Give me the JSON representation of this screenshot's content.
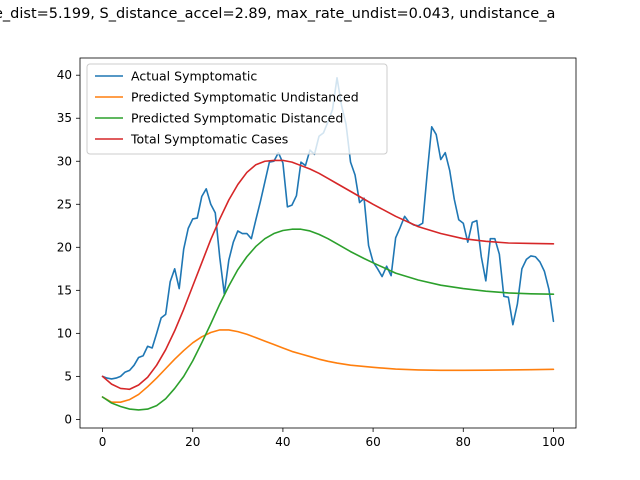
{
  "chart_data": {
    "type": "line",
    "title": "e_dist=5.199, S_distance_accel=2.89, max_rate_undist=0.043, undistance_a",
    "xlabel": "",
    "ylabel": "",
    "xlim": [
      -5,
      105
    ],
    "ylim": [
      -1,
      42
    ],
    "xticks": [
      0,
      20,
      40,
      60,
      80,
      100
    ],
    "yticks": [
      0,
      5,
      10,
      15,
      20,
      25,
      30,
      35,
      40
    ],
    "grid": false,
    "legend_position": "top-left",
    "series": [
      {
        "name": "Actual Symptomatic",
        "color": "#1f77b4",
        "points": [
          [
            0,
            5.0
          ],
          [
            1,
            4.8
          ],
          [
            2,
            4.7
          ],
          [
            3,
            4.8
          ],
          [
            4,
            5.0
          ],
          [
            5,
            5.5
          ],
          [
            6,
            5.7
          ],
          [
            7,
            6.3
          ],
          [
            8,
            7.2
          ],
          [
            9,
            7.4
          ],
          [
            10,
            8.5
          ],
          [
            11,
            8.3
          ],
          [
            12,
            10.0
          ],
          [
            13,
            11.8
          ],
          [
            14,
            12.2
          ],
          [
            15,
            16.0
          ],
          [
            16,
            17.5
          ],
          [
            17,
            15.2
          ],
          [
            18,
            19.8
          ],
          [
            19,
            22.2
          ],
          [
            20,
            23.3
          ],
          [
            21,
            23.4
          ],
          [
            22,
            25.9
          ],
          [
            23,
            26.8
          ],
          [
            24,
            25.0
          ],
          [
            25,
            24.0
          ],
          [
            26,
            18.8
          ],
          [
            27,
            14.6
          ],
          [
            28,
            18.5
          ],
          [
            29,
            20.6
          ],
          [
            30,
            21.9
          ],
          [
            31,
            21.6
          ],
          [
            32,
            21.6
          ],
          [
            33,
            21.0
          ],
          [
            34,
            23.2
          ],
          [
            35,
            25.3
          ],
          [
            36,
            27.6
          ],
          [
            37,
            29.9
          ],
          [
            38,
            30.0
          ],
          [
            39,
            31.0
          ],
          [
            40,
            29.8
          ],
          [
            41,
            24.7
          ],
          [
            42,
            24.9
          ],
          [
            43,
            26.0
          ],
          [
            44,
            29.9
          ],
          [
            45,
            29.5
          ],
          [
            46,
            31.3
          ],
          [
            47,
            30.8
          ],
          [
            48,
            32.9
          ],
          [
            49,
            33.3
          ],
          [
            50,
            34.6
          ],
          [
            51,
            36.0
          ],
          [
            52,
            39.7
          ],
          [
            53,
            36.5
          ],
          [
            54,
            34.3
          ],
          [
            55,
            29.9
          ],
          [
            56,
            28.4
          ],
          [
            57,
            25.2
          ],
          [
            58,
            25.7
          ],
          [
            59,
            20.2
          ],
          [
            60,
            18.3
          ],
          [
            61,
            17.5
          ],
          [
            62,
            16.6
          ],
          [
            63,
            17.8
          ],
          [
            64,
            16.7
          ],
          [
            65,
            21.1
          ],
          [
            66,
            22.3
          ],
          [
            67,
            23.6
          ],
          [
            68,
            22.9
          ],
          [
            69,
            22.6
          ],
          [
            70,
            22.5
          ],
          [
            71,
            22.8
          ],
          [
            72,
            28.6
          ],
          [
            73,
            34.0
          ],
          [
            74,
            33.1
          ],
          [
            75,
            30.2
          ],
          [
            76,
            31.0
          ],
          [
            77,
            28.9
          ],
          [
            78,
            25.6
          ],
          [
            79,
            23.2
          ],
          [
            80,
            22.8
          ],
          [
            81,
            20.6
          ],
          [
            82,
            22.9
          ],
          [
            83,
            23.1
          ],
          [
            84,
            18.9
          ],
          [
            85,
            16.1
          ],
          [
            86,
            21.0
          ],
          [
            87,
            21.0
          ],
          [
            88,
            19.2
          ],
          [
            89,
            14.3
          ],
          [
            90,
            14.2
          ],
          [
            91,
            11.0
          ],
          [
            92,
            13.4
          ],
          [
            93,
            17.5
          ],
          [
            94,
            18.6
          ],
          [
            95,
            19.0
          ],
          [
            96,
            18.9
          ],
          [
            97,
            18.3
          ],
          [
            98,
            17.2
          ],
          [
            99,
            15.1
          ],
          [
            100,
            11.4
          ]
        ]
      },
      {
        "name": "Predicted Symptomatic Undistanced",
        "color": "#ff7f0e",
        "points": [
          [
            0,
            2.6
          ],
          [
            2,
            2.0
          ],
          [
            4,
            2.0
          ],
          [
            6,
            2.3
          ],
          [
            8,
            2.9
          ],
          [
            10,
            3.8
          ],
          [
            12,
            4.8
          ],
          [
            14,
            5.9
          ],
          [
            16,
            7.0
          ],
          [
            18,
            8.0
          ],
          [
            20,
            8.9
          ],
          [
            22,
            9.6
          ],
          [
            24,
            10.1
          ],
          [
            26,
            10.4
          ],
          [
            28,
            10.4
          ],
          [
            30,
            10.2
          ],
          [
            32,
            9.9
          ],
          [
            34,
            9.5
          ],
          [
            36,
            9.1
          ],
          [
            38,
            8.7
          ],
          [
            40,
            8.3
          ],
          [
            42,
            7.9
          ],
          [
            44,
            7.6
          ],
          [
            46,
            7.3
          ],
          [
            48,
            7.0
          ],
          [
            50,
            6.75
          ],
          [
            52,
            6.55
          ],
          [
            55,
            6.3
          ],
          [
            60,
            6.05
          ],
          [
            65,
            5.85
          ],
          [
            70,
            5.75
          ],
          [
            75,
            5.7
          ],
          [
            80,
            5.7
          ],
          [
            85,
            5.72
          ],
          [
            90,
            5.75
          ],
          [
            95,
            5.78
          ],
          [
            100,
            5.82
          ]
        ]
      },
      {
        "name": "Predicted Symptomatic Distanced",
        "color": "#2ca02c",
        "points": [
          [
            0,
            2.6
          ],
          [
            2,
            1.9
          ],
          [
            4,
            1.5
          ],
          [
            6,
            1.2
          ],
          [
            8,
            1.1
          ],
          [
            10,
            1.2
          ],
          [
            12,
            1.6
          ],
          [
            14,
            2.4
          ],
          [
            16,
            3.6
          ],
          [
            18,
            5.0
          ],
          [
            20,
            6.8
          ],
          [
            22,
            8.9
          ],
          [
            24,
            11.1
          ],
          [
            26,
            13.4
          ],
          [
            28,
            15.5
          ],
          [
            30,
            17.4
          ],
          [
            32,
            18.9
          ],
          [
            34,
            20.1
          ],
          [
            36,
            21.0
          ],
          [
            38,
            21.6
          ],
          [
            40,
            21.95
          ],
          [
            42,
            22.1
          ],
          [
            44,
            22.1
          ],
          [
            46,
            21.9
          ],
          [
            48,
            21.5
          ],
          [
            50,
            21.0
          ],
          [
            52,
            20.4
          ],
          [
            55,
            19.5
          ],
          [
            58,
            18.7
          ],
          [
            60,
            18.2
          ],
          [
            65,
            17.0
          ],
          [
            70,
            16.2
          ],
          [
            75,
            15.6
          ],
          [
            80,
            15.2
          ],
          [
            85,
            14.9
          ],
          [
            90,
            14.7
          ],
          [
            95,
            14.6
          ],
          [
            100,
            14.55
          ]
        ]
      },
      {
        "name": "Total Symptomatic Cases",
        "color": "#d62728",
        "points": [
          [
            0,
            5.0
          ],
          [
            2,
            4.1
          ],
          [
            4,
            3.6
          ],
          [
            6,
            3.5
          ],
          [
            8,
            4.0
          ],
          [
            10,
            4.9
          ],
          [
            12,
            6.3
          ],
          [
            14,
            8.1
          ],
          [
            16,
            10.3
          ],
          [
            18,
            12.8
          ],
          [
            20,
            15.5
          ],
          [
            22,
            18.2
          ],
          [
            24,
            20.9
          ],
          [
            26,
            23.3
          ],
          [
            28,
            25.5
          ],
          [
            30,
            27.3
          ],
          [
            32,
            28.7
          ],
          [
            34,
            29.6
          ],
          [
            36,
            30.0
          ],
          [
            38,
            30.1
          ],
          [
            40,
            30.1
          ],
          [
            42,
            29.9
          ],
          [
            44,
            29.5
          ],
          [
            46,
            29.1
          ],
          [
            48,
            28.6
          ],
          [
            50,
            28.0
          ],
          [
            52,
            27.4
          ],
          [
            55,
            26.5
          ],
          [
            58,
            25.6
          ],
          [
            60,
            25.0
          ],
          [
            65,
            23.6
          ],
          [
            70,
            22.4
          ],
          [
            75,
            21.6
          ],
          [
            80,
            21.0
          ],
          [
            85,
            20.7
          ],
          [
            90,
            20.5
          ],
          [
            95,
            20.45
          ],
          [
            100,
            20.4
          ]
        ]
      }
    ]
  }
}
